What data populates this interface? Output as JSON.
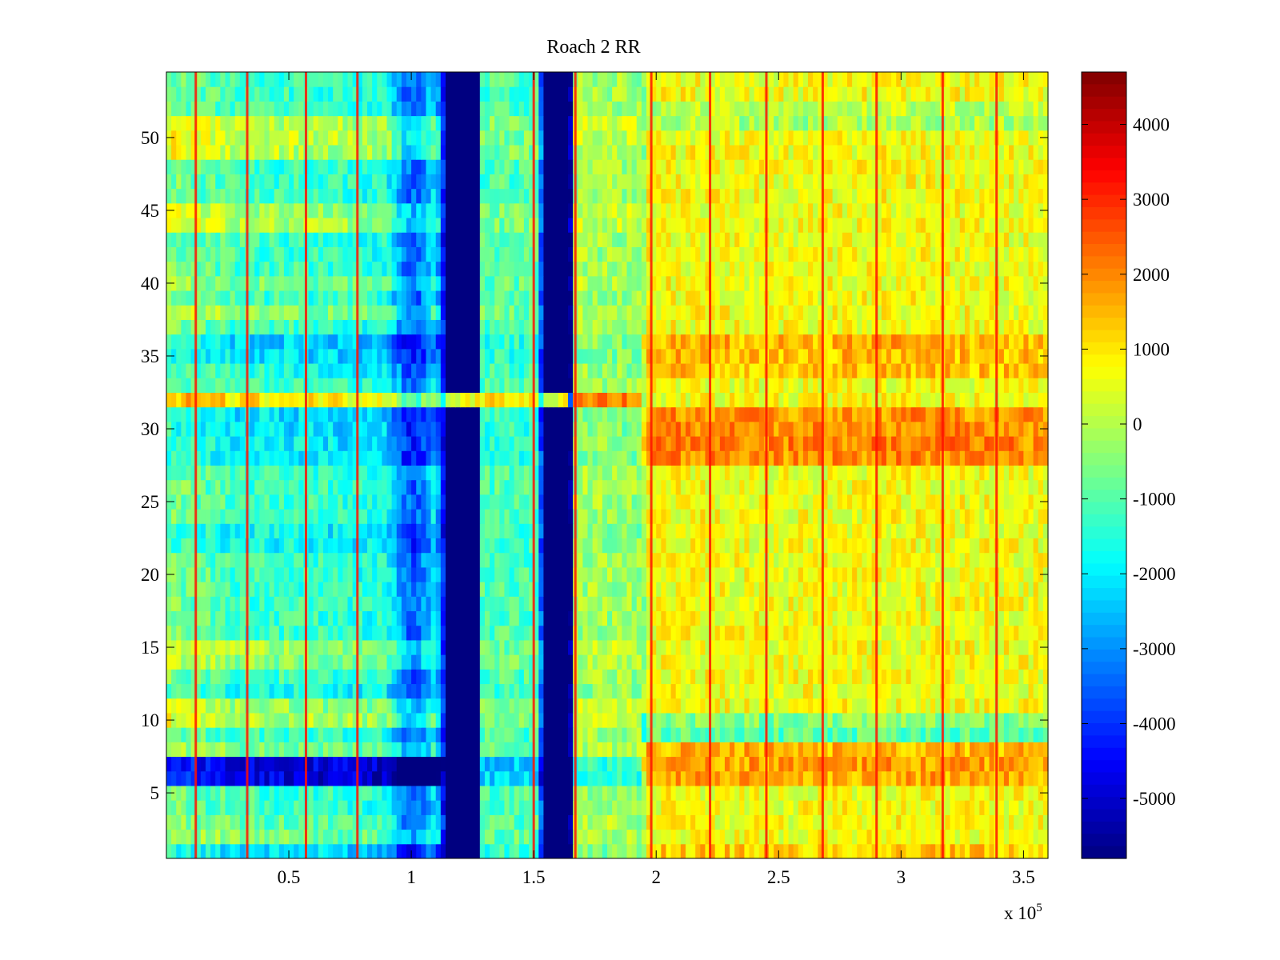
{
  "chart_data": {
    "type": "heatmap",
    "title": "Roach 2 RR",
    "xlabel": "",
    "ylabel": "",
    "x_exponent_label": "x 10",
    "x_exponent_power": "5",
    "xlim": [
      0,
      3.6
    ],
    "ylim": [
      0.5,
      54.5
    ],
    "xticks": [
      0.5,
      1,
      1.5,
      2,
      2.5,
      3,
      3.5
    ],
    "xtick_labels": [
      "0.5",
      "1",
      "1.5",
      "2",
      "2.5",
      "3",
      "3.5"
    ],
    "yticks": [
      5,
      10,
      15,
      20,
      25,
      30,
      35,
      40,
      45,
      50
    ],
    "ytick_labels": [
      "5",
      "10",
      "15",
      "20",
      "25",
      "30",
      "35",
      "40",
      "45",
      "50"
    ],
    "colormap": "jet",
    "clim": [
      -5800,
      4700
    ],
    "colorbar": {
      "ticks": [
        -5000,
        -4000,
        -3000,
        -2000,
        -1000,
        0,
        1000,
        2000,
        3000,
        4000
      ],
      "tick_labels": [
        "-5000",
        "-4000",
        "-3000",
        "-2000",
        "-1000",
        "0",
        "1000",
        "2000",
        "3000",
        "4000"
      ]
    },
    "rows": 54,
    "x_profile_units": "x 10^5",
    "column_profile": [
      {
        "x": 0.0,
        "value": -600
      },
      {
        "x": 0.3,
        "value": -1200
      },
      {
        "x": 0.6,
        "value": -1300
      },
      {
        "x": 0.9,
        "value": -1600
      },
      {
        "x": 0.97,
        "value": -3200
      },
      {
        "x": 1.02,
        "value": -3600
      },
      {
        "x": 1.1,
        "value": -2000
      },
      {
        "x": 1.15,
        "value": -5800
      },
      {
        "x": 1.27,
        "value": -5800
      },
      {
        "x": 1.28,
        "value": -1100
      },
      {
        "x": 1.52,
        "value": -1100
      },
      {
        "x": 1.54,
        "value": -5800
      },
      {
        "x": 1.65,
        "value": -5800
      },
      {
        "x": 1.66,
        "value": -200
      },
      {
        "x": 1.95,
        "value": -300
      },
      {
        "x": 1.96,
        "value": 700
      },
      {
        "x": 2.5,
        "value": 600
      },
      {
        "x": 3.0,
        "value": 700
      },
      {
        "x": 3.6,
        "value": 600
      }
    ],
    "dark_blue_bands_x": [
      [
        1.15,
        1.27
      ],
      [
        1.54,
        1.65
      ]
    ],
    "row_offsets": [
      {
        "y": 1,
        "offset": -900
      },
      {
        "y": 2,
        "offset": 600
      },
      {
        "y": 3,
        "offset": 300
      },
      {
        "y": 6,
        "offset": -3500
      },
      {
        "y": 7,
        "offset": -3500
      },
      {
        "y": 8,
        "offset": 600
      },
      {
        "y": 10,
        "offset": 1200
      },
      {
        "y": 11,
        "offset": 900
      },
      {
        "y": 12,
        "offset": -400
      },
      {
        "y": 14,
        "offset": 800
      },
      {
        "y": 15,
        "offset": 1000
      },
      {
        "y": 22,
        "offset": -500
      },
      {
        "y": 23,
        "offset": -600
      },
      {
        "y": 28,
        "offset": -800
      },
      {
        "y": 29,
        "offset": -700
      },
      {
        "y": 30,
        "offset": -800
      },
      {
        "y": 31,
        "offset": -900
      },
      {
        "y": 32,
        "offset": 2200
      },
      {
        "y": 34,
        "offset": -300
      },
      {
        "y": 35,
        "offset": -900
      },
      {
        "y": 36,
        "offset": -1000
      },
      {
        "y": 38,
        "offset": 800
      },
      {
        "y": 40,
        "offset": 600
      },
      {
        "y": 44,
        "offset": 1200
      },
      {
        "y": 45,
        "offset": 1000
      },
      {
        "y": 49,
        "offset": 1300
      },
      {
        "y": 50,
        "offset": 1400
      },
      {
        "y": 51,
        "offset": 1300
      }
    ],
    "right_row_offsets": [
      {
        "y": 1,
        "offset": 600
      },
      {
        "y": 6,
        "offset": 1000
      },
      {
        "y": 7,
        "offset": 1100
      },
      {
        "y": 8,
        "offset": 900
      },
      {
        "y": 9,
        "offset": -1600
      },
      {
        "y": 10,
        "offset": -1200
      },
      {
        "y": 28,
        "offset": 1300
      },
      {
        "y": 29,
        "offset": 1400
      },
      {
        "y": 30,
        "offset": 1300
      },
      {
        "y": 31,
        "offset": 1200
      },
      {
        "y": 34,
        "offset": 700
      },
      {
        "y": 35,
        "offset": 800
      },
      {
        "y": 36,
        "offset": 900
      },
      {
        "y": 51,
        "offset": -800
      },
      {
        "y": 52,
        "offset": -600
      }
    ],
    "spike_lines_x": [
      0.12,
      0.33,
      0.57,
      0.78,
      1.5,
      1.67,
      1.98,
      2.22,
      2.45,
      2.68,
      2.9,
      3.17,
      3.39
    ],
    "spike_value": 3200
  }
}
